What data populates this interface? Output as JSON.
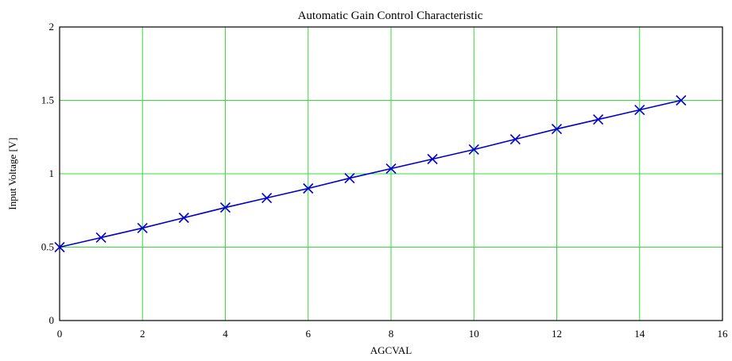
{
  "chart_data": {
    "type": "line",
    "title": "Automatic Gain Control Characteristic",
    "xlabel": "AGCVAL",
    "ylabel": "Input Voltage [V]",
    "xlim": [
      0,
      16
    ],
    "ylim": [
      0,
      2
    ],
    "x_ticks": [
      "0",
      "2",
      "4",
      "6",
      "8",
      "10",
      "12",
      "14",
      "16"
    ],
    "y_ticks": [
      "0",
      "0.5",
      "1",
      "1.5",
      "2"
    ],
    "grid": true,
    "legend": "none",
    "colors": {
      "series": "#0000cc",
      "grid": "#33dd33",
      "frame": "#000000"
    },
    "series": [
      {
        "marker": "x",
        "x": [
          0,
          1,
          2,
          3,
          4,
          5,
          6,
          7,
          8,
          9,
          10,
          11,
          12,
          13,
          14,
          15
        ],
        "y": [
          0.5,
          0.565,
          0.63,
          0.7,
          0.77,
          0.835,
          0.9,
          0.97,
          1.035,
          1.1,
          1.165,
          1.235,
          1.305,
          1.37,
          1.435,
          1.5
        ]
      }
    ]
  }
}
